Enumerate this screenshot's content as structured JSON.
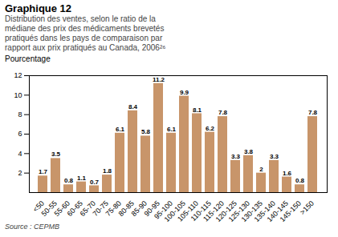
{
  "chart_data": {
    "type": "bar",
    "title": "Graphique 12",
    "subtitle": "Distribution des ventes, selon le ratio de la\nmédiane des prix des médicaments brevetés\npratiqués dans les pays de comparaison par\nrapport aux prix pratiqués au Canada, 2006²⁶",
    "ylabel": "Pourcentage",
    "annotations": [
      "Source : CEPMB"
    ],
    "categories": [
      "<50",
      "50-55",
      "55-60",
      "60-65",
      "65-70",
      "70-75",
      "75-80",
      "80-85",
      "85-90",
      "90-95",
      "95-100",
      "100-105",
      "105-110",
      "110-115",
      "115-120",
      "120-125",
      "125-130",
      "130-135",
      "135-140",
      "140-145",
      "145-150",
      ">150"
    ],
    "values": [
      1.7,
      3.5,
      0.8,
      1.1,
      0.7,
      1.8,
      6.1,
      8.4,
      5.8,
      11.2,
      6.1,
      9.9,
      8.1,
      6.2,
      7.8,
      3.3,
      3.8,
      2.0,
      3.3,
      1.6,
      0.8,
      7.8
    ],
    "color": "#C8956A",
    "ylim": [
      0,
      12
    ],
    "yticks": [
      2,
      4,
      6,
      8,
      10,
      12
    ],
    "data_labels": true,
    "grid": false
  }
}
